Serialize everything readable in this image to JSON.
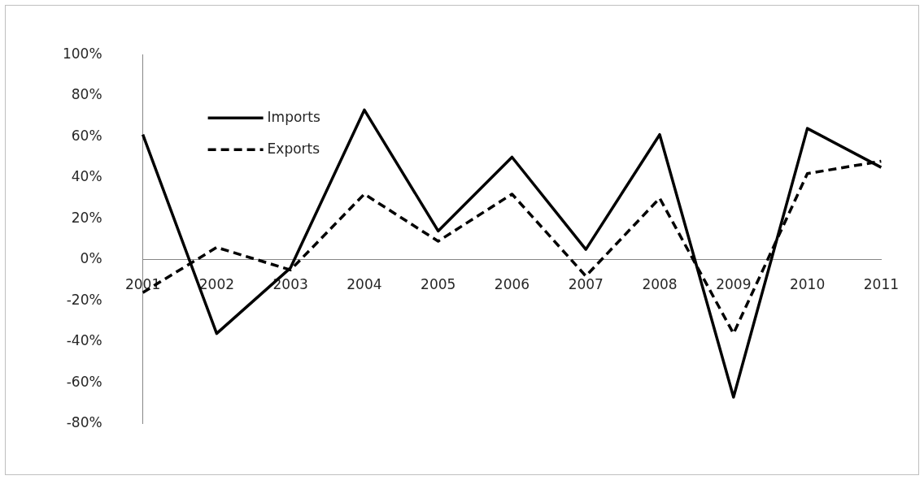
{
  "chart_data": {
    "type": "line",
    "categories": [
      "2001",
      "2002",
      "2003",
      "2004",
      "2005",
      "2006",
      "2007",
      "2008",
      "2009",
      "2010",
      "2011"
    ],
    "series": [
      {
        "name": "Imports",
        "color": "#000000",
        "line_style": "solid",
        "values": [
          61,
          -36,
          -4,
          73,
          14,
          50,
          5,
          61,
          -67,
          64,
          45
        ]
      },
      {
        "name": "Exports",
        "color": "#000000",
        "line_style": "dashed",
        "values": [
          -16,
          6,
          -5,
          32,
          9,
          32,
          -8,
          30,
          -36,
          42,
          48
        ]
      }
    ],
    "ylim": [
      -80,
      100
    ],
    "yticks": [
      {
        "value": -80,
        "label": "-80%"
      },
      {
        "value": -60,
        "label": "-60%"
      },
      {
        "value": -40,
        "label": "-40%"
      },
      {
        "value": -20,
        "label": "-20%"
      },
      {
        "value": 0,
        "label": "0%"
      },
      {
        "value": 20,
        "label": "20%"
      },
      {
        "value": 40,
        "label": "40%"
      },
      {
        "value": 60,
        "label": "60%"
      },
      {
        "value": 80,
        "label": "80%"
      },
      {
        "value": 100,
        "label": "100%"
      }
    ],
    "grid": false,
    "legend": "top left",
    "marker": "none"
  }
}
